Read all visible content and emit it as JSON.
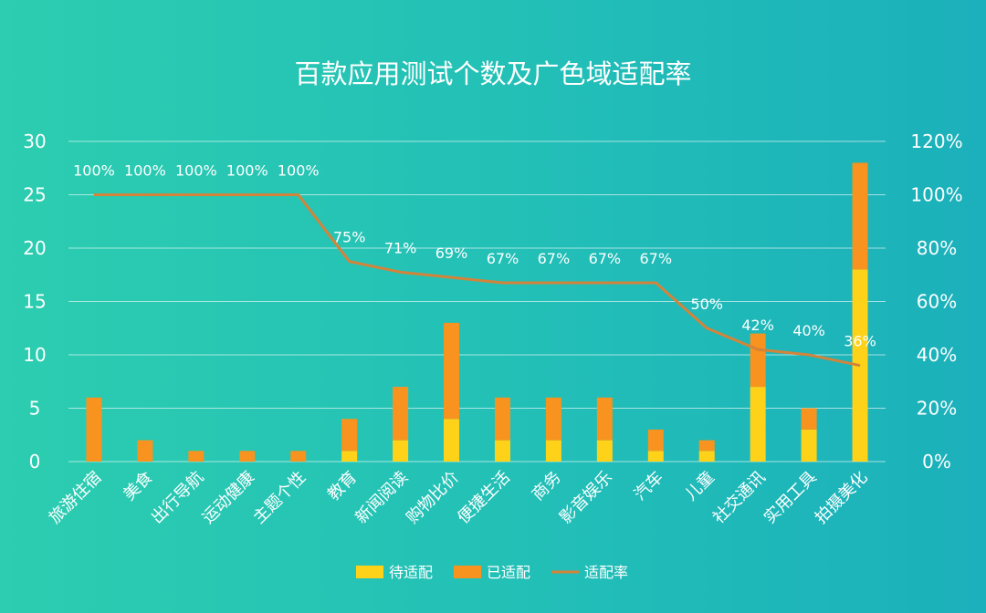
{
  "chart_data": {
    "type": "bar",
    "stacked": true,
    "title": "百款应用测试个数及广色域适配率",
    "categories": [
      "旅游住宿",
      "美食",
      "出行导航",
      "运动健康",
      "主题个性",
      "教育",
      "新闻阅读",
      "购物比价",
      "便捷生活",
      "商务",
      "影音娱乐",
      "汽车",
      "儿童",
      "社交通讯",
      "实用工具",
      "拍摄美化"
    ],
    "series": [
      {
        "name": "待适配",
        "type": "bar",
        "axis": "left",
        "color": "#ffd21a",
        "values": [
          0,
          0,
          0,
          0,
          0,
          1,
          2,
          4,
          2,
          2,
          2,
          1,
          1,
          7,
          3,
          18
        ]
      },
      {
        "name": "已适配",
        "type": "bar",
        "axis": "left",
        "color": "#f7931e",
        "values": [
          6,
          2,
          1,
          1,
          1,
          3,
          5,
          9,
          4,
          4,
          4,
          2,
          1,
          5,
          2,
          10
        ]
      },
      {
        "name": "适配率",
        "type": "line",
        "axis": "right",
        "color": "#d4833a",
        "values": [
          100,
          100,
          100,
          100,
          100,
          75,
          71,
          69,
          67,
          67,
          67,
          67,
          50,
          42,
          40,
          36
        ],
        "labels": [
          "100%",
          "100%",
          "100%",
          "100%",
          "100%",
          "75%",
          "71%",
          "69%",
          "67%",
          "67%",
          "67%",
          "67%",
          "50%",
          "42%",
          "40%",
          "36%"
        ]
      }
    ],
    "y_left": {
      "min": 0,
      "max": 30,
      "ticks": [
        "0",
        "5",
        "10",
        "15",
        "20",
        "25",
        "30"
      ]
    },
    "y_right": {
      "min": 0,
      "max": 120,
      "ticks": [
        "0%",
        "20%",
        "40%",
        "60%",
        "80%",
        "100%",
        "120%"
      ]
    },
    "grid": true,
    "legend_position": "bottom"
  }
}
